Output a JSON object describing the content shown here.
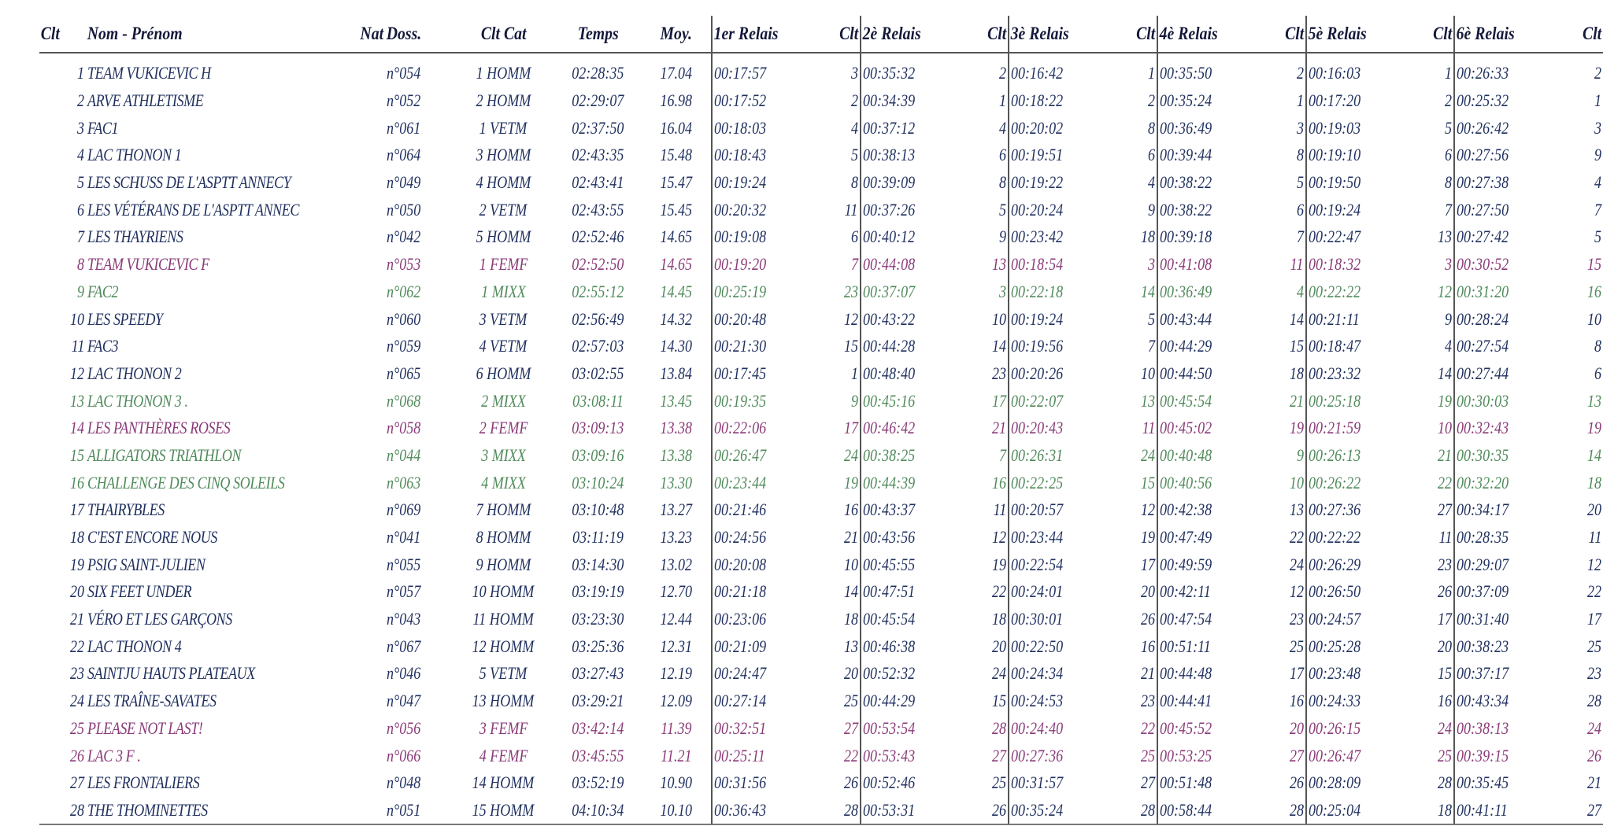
{
  "columns": {
    "clt": "Clt",
    "nom": "Nom - Prénom",
    "nat": "Nat",
    "doss": "Doss.",
    "clt_cat": "Clt Cat",
    "temps": "Temps",
    "moy": "Moy.",
    "relais1": "1er Relais",
    "relais2": "2è Relais",
    "relais3": "3è Relais",
    "relais4": "4è Relais",
    "relais5": "5è Relais",
    "relais6": "6è Relais"
  },
  "colors": {
    "HOMM": "#1f2f5e",
    "VETM": "#1f2f5e",
    "FEMF": "#8a3a78",
    "MIXX": "#4f8a5a",
    "header": "#14193a"
  },
  "rows": [
    {
      "clt": "1",
      "name": "TEAM VUKICEVIC H",
      "doss": "n°054",
      "cat": "1 HOMM",
      "type": "HOMM",
      "temps": "02:28:35",
      "moy": "17.04",
      "r1": "00:17:57",
      "c1": "3",
      "r2": "00:35:32",
      "c2": "2",
      "r3": "00:16:42",
      "c3": "1",
      "r4": "00:35:50",
      "c4": "2",
      "r5": "00:16:03",
      "c5": "1",
      "r6": "00:26:33",
      "c6": "2"
    },
    {
      "clt": "2",
      "name": "ARVE ATHLETISME",
      "doss": "n°052",
      "cat": "2 HOMM",
      "type": "HOMM",
      "temps": "02:29:07",
      "moy": "16.98",
      "r1": "00:17:52",
      "c1": "2",
      "r2": "00:34:39",
      "c2": "1",
      "r3": "00:18:22",
      "c3": "2",
      "r4": "00:35:24",
      "c4": "1",
      "r5": "00:17:20",
      "c5": "2",
      "r6": "00:25:32",
      "c6": "1"
    },
    {
      "clt": "3",
      "name": "FAC1",
      "doss": "n°061",
      "cat": "1 VETM",
      "type": "VETM",
      "temps": "02:37:50",
      "moy": "16.04",
      "r1": "00:18:03",
      "c1": "4",
      "r2": "00:37:12",
      "c2": "4",
      "r3": "00:20:02",
      "c3": "8",
      "r4": "00:36:49",
      "c4": "3",
      "r5": "00:19:03",
      "c5": "5",
      "r6": "00:26:42",
      "c6": "3"
    },
    {
      "clt": "4",
      "name": "LAC THONON 1",
      "doss": "n°064",
      "cat": "3 HOMM",
      "type": "HOMM",
      "temps": "02:43:35",
      "moy": "15.48",
      "r1": "00:18:43",
      "c1": "5",
      "r2": "00:38:13",
      "c2": "6",
      "r3": "00:19:51",
      "c3": "6",
      "r4": "00:39:44",
      "c4": "8",
      "r5": "00:19:10",
      "c5": "6",
      "r6": "00:27:56",
      "c6": "9"
    },
    {
      "clt": "5",
      "name": "LES SCHUSS DE L'ASPTT ANNECY",
      "doss": "n°049",
      "cat": "4 HOMM",
      "type": "HOMM",
      "temps": "02:43:41",
      "moy": "15.47",
      "r1": "00:19:24",
      "c1": "8",
      "r2": "00:39:09",
      "c2": "8",
      "r3": "00:19:22",
      "c3": "4",
      "r4": "00:38:22",
      "c4": "5",
      "r5": "00:19:50",
      "c5": "8",
      "r6": "00:27:38",
      "c6": "4"
    },
    {
      "clt": "6",
      "name": "LES VÉTÉRANS DE L'ASPTT ANNEC",
      "doss": "n°050",
      "cat": "2 VETM",
      "type": "VETM",
      "temps": "02:43:55",
      "moy": "15.45",
      "r1": "00:20:32",
      "c1": "11",
      "r2": "00:37:26",
      "c2": "5",
      "r3": "00:20:24",
      "c3": "9",
      "r4": "00:38:22",
      "c4": "6",
      "r5": "00:19:24",
      "c5": "7",
      "r6": "00:27:50",
      "c6": "7"
    },
    {
      "clt": "7",
      "name": "LES THAYRIENS",
      "doss": "n°042",
      "cat": "5 HOMM",
      "type": "HOMM",
      "temps": "02:52:46",
      "moy": "14.65",
      "r1": "00:19:08",
      "c1": "6",
      "r2": "00:40:12",
      "c2": "9",
      "r3": "00:23:42",
      "c3": "18",
      "r4": "00:39:18",
      "c4": "7",
      "r5": "00:22:47",
      "c5": "13",
      "r6": "00:27:42",
      "c6": "5"
    },
    {
      "clt": "8",
      "name": "TEAM VUKICEVIC F",
      "doss": "n°053",
      "cat": "1 FEMF",
      "type": "FEMF",
      "temps": "02:52:50",
      "moy": "14.65",
      "r1": "00:19:20",
      "c1": "7",
      "r2": "00:44:08",
      "c2": "13",
      "r3": "00:18:54",
      "c3": "3",
      "r4": "00:41:08",
      "c4": "11",
      "r5": "00:18:32",
      "c5": "3",
      "r6": "00:30:52",
      "c6": "15"
    },
    {
      "clt": "9",
      "name": "FAC2",
      "doss": "n°062",
      "cat": "1 MIXX",
      "type": "MIXX",
      "temps": "02:55:12",
      "moy": "14.45",
      "r1": "00:25:19",
      "c1": "23",
      "r2": "00:37:07",
      "c2": "3",
      "r3": "00:22:18",
      "c3": "14",
      "r4": "00:36:49",
      "c4": "4",
      "r5": "00:22:22",
      "c5": "12",
      "r6": "00:31:20",
      "c6": "16"
    },
    {
      "clt": "10",
      "name": "LES SPEEDY",
      "doss": "n°060",
      "cat": "3 VETM",
      "type": "VETM",
      "temps": "02:56:49",
      "moy": "14.32",
      "r1": "00:20:48",
      "c1": "12",
      "r2": "00:43:22",
      "c2": "10",
      "r3": "00:19:24",
      "c3": "5",
      "r4": "00:43:44",
      "c4": "14",
      "r5": "00:21:11",
      "c5": "9",
      "r6": "00:28:24",
      "c6": "10"
    },
    {
      "clt": "11",
      "name": "FAC3",
      "doss": "n°059",
      "cat": "4 VETM",
      "type": "VETM",
      "temps": "02:57:03",
      "moy": "14.30",
      "r1": "00:21:30",
      "c1": "15",
      "r2": "00:44:28",
      "c2": "14",
      "r3": "00:19:56",
      "c3": "7",
      "r4": "00:44:29",
      "c4": "15",
      "r5": "00:18:47",
      "c5": "4",
      "r6": "00:27:54",
      "c6": "8"
    },
    {
      "clt": "12",
      "name": "LAC THONON 2",
      "doss": "n°065",
      "cat": "6 HOMM",
      "type": "HOMM",
      "temps": "03:02:55",
      "moy": "13.84",
      "r1": "00:17:45",
      "c1": "1",
      "r2": "00:48:40",
      "c2": "23",
      "r3": "00:20:26",
      "c3": "10",
      "r4": "00:44:50",
      "c4": "18",
      "r5": "00:23:32",
      "c5": "14",
      "r6": "00:27:44",
      "c6": "6"
    },
    {
      "clt": "13",
      "name": "LAC THONON 3 .",
      "doss": "n°068",
      "cat": "2 MIXX",
      "type": "MIXX",
      "temps": "03:08:11",
      "moy": "13.45",
      "r1": "00:19:35",
      "c1": "9",
      "r2": "00:45:16",
      "c2": "17",
      "r3": "00:22:07",
      "c3": "13",
      "r4": "00:45:54",
      "c4": "21",
      "r5": "00:25:18",
      "c5": "19",
      "r6": "00:30:03",
      "c6": "13"
    },
    {
      "clt": "14",
      "name": "LES PANTHÈRES ROSES",
      "doss": "n°058",
      "cat": "2 FEMF",
      "type": "FEMF",
      "temps": "03:09:13",
      "moy": "13.38",
      "r1": "00:22:06",
      "c1": "17",
      "r2": "00:46:42",
      "c2": "21",
      "r3": "00:20:43",
      "c3": "11",
      "r4": "00:45:02",
      "c4": "19",
      "r5": "00:21:59",
      "c5": "10",
      "r6": "00:32:43",
      "c6": "19"
    },
    {
      "clt": "15",
      "name": "ALLIGATORS TRIATHLON",
      "doss": "n°044",
      "cat": "3 MIXX",
      "type": "MIXX",
      "temps": "03:09:16",
      "moy": "13.38",
      "r1": "00:26:47",
      "c1": "24",
      "r2": "00:38:25",
      "c2": "7",
      "r3": "00:26:31",
      "c3": "24",
      "r4": "00:40:48",
      "c4": "9",
      "r5": "00:26:13",
      "c5": "21",
      "r6": "00:30:35",
      "c6": "14"
    },
    {
      "clt": "16",
      "name": "CHALLENGE DES CINQ SOLEILS",
      "doss": "n°063",
      "cat": "4 MIXX",
      "type": "MIXX",
      "temps": "03:10:24",
      "moy": "13.30",
      "r1": "00:23:44",
      "c1": "19",
      "r2": "00:44:39",
      "c2": "16",
      "r3": "00:22:25",
      "c3": "15",
      "r4": "00:40:56",
      "c4": "10",
      "r5": "00:26:22",
      "c5": "22",
      "r6": "00:32:20",
      "c6": "18"
    },
    {
      "clt": "17",
      "name": "THAIRYBLES",
      "doss": "n°069",
      "cat": "7 HOMM",
      "type": "HOMM",
      "temps": "03:10:48",
      "moy": "13.27",
      "r1": "00:21:46",
      "c1": "16",
      "r2": "00:43:37",
      "c2": "11",
      "r3": "00:20:57",
      "c3": "12",
      "r4": "00:42:38",
      "c4": "13",
      "r5": "00:27:36",
      "c5": "27",
      "r6": "00:34:17",
      "c6": "20"
    },
    {
      "clt": "18",
      "name": "C'EST ENCORE NOUS",
      "doss": "n°041",
      "cat": "8 HOMM",
      "type": "HOMM",
      "temps": "03:11:19",
      "moy": "13.23",
      "r1": "00:24:56",
      "c1": "21",
      "r2": "00:43:56",
      "c2": "12",
      "r3": "00:23:44",
      "c3": "19",
      "r4": "00:47:49",
      "c4": "22",
      "r5": "00:22:22",
      "c5": "11",
      "r6": "00:28:35",
      "c6": "11"
    },
    {
      "clt": "19",
      "name": "PSIG SAINT-JULIEN",
      "doss": "n°055",
      "cat": "9 HOMM",
      "type": "HOMM",
      "temps": "03:14:30",
      "moy": "13.02",
      "r1": "00:20:08",
      "c1": "10",
      "r2": "00:45:55",
      "c2": "19",
      "r3": "00:22:54",
      "c3": "17",
      "r4": "00:49:59",
      "c4": "24",
      "r5": "00:26:29",
      "c5": "23",
      "r6": "00:29:07",
      "c6": "12"
    },
    {
      "clt": "20",
      "name": "SIX FEET UNDER",
      "doss": "n°057",
      "cat": "10 HOMM",
      "type": "HOMM",
      "temps": "03:19:19",
      "moy": "12.70",
      "r1": "00:21:18",
      "c1": "14",
      "r2": "00:47:51",
      "c2": "22",
      "r3": "00:24:01",
      "c3": "20",
      "r4": "00:42:11",
      "c4": "12",
      "r5": "00:26:50",
      "c5": "26",
      "r6": "00:37:09",
      "c6": "22"
    },
    {
      "clt": "21",
      "name": "VÉRO ET LES GARÇONS",
      "doss": "n°043",
      "cat": "11 HOMM",
      "type": "HOMM",
      "temps": "03:23:30",
      "moy": "12.44",
      "r1": "00:23:06",
      "c1": "18",
      "r2": "00:45:54",
      "c2": "18",
      "r3": "00:30:01",
      "c3": "26",
      "r4": "00:47:54",
      "c4": "23",
      "r5": "00:24:57",
      "c5": "17",
      "r6": "00:31:40",
      "c6": "17"
    },
    {
      "clt": "22",
      "name": "LAC THONON 4",
      "doss": "n°067",
      "cat": "12 HOMM",
      "type": "HOMM",
      "temps": "03:25:36",
      "moy": "12.31",
      "r1": "00:21:09",
      "c1": "13",
      "r2": "00:46:38",
      "c2": "20",
      "r3": "00:22:50",
      "c3": "16",
      "r4": "00:51:11",
      "c4": "25",
      "r5": "00:25:28",
      "c5": "20",
      "r6": "00:38:23",
      "c6": "25"
    },
    {
      "clt": "23",
      "name": "SAINTJU HAUTS PLATEAUX",
      "doss": "n°046",
      "cat": "5 VETM",
      "type": "VETM",
      "temps": "03:27:43",
      "moy": "12.19",
      "r1": "00:24:47",
      "c1": "20",
      "r2": "00:52:32",
      "c2": "24",
      "r3": "00:24:34",
      "c3": "21",
      "r4": "00:44:48",
      "c4": "17",
      "r5": "00:23:48",
      "c5": "15",
      "r6": "00:37:17",
      "c6": "23"
    },
    {
      "clt": "24",
      "name": "LES TRAÎNE-SAVATES",
      "doss": "n°047",
      "cat": "13 HOMM",
      "type": "HOMM",
      "temps": "03:29:21",
      "moy": "12.09",
      "r1": "00:27:14",
      "c1": "25",
      "r2": "00:44:29",
      "c2": "15",
      "r3": "00:24:53",
      "c3": "23",
      "r4": "00:44:41",
      "c4": "16",
      "r5": "00:24:33",
      "c5": "16",
      "r6": "00:43:34",
      "c6": "28"
    },
    {
      "clt": "25",
      "name": "PLEASE NOT LAST!",
      "doss": "n°056",
      "cat": "3 FEMF",
      "type": "FEMF",
      "temps": "03:42:14",
      "moy": "11.39",
      "r1": "00:32:51",
      "c1": "27",
      "r2": "00:53:54",
      "c2": "28",
      "r3": "00:24:40",
      "c3": "22",
      "r4": "00:45:52",
      "c4": "20",
      "r5": "00:26:15",
      "c5": "24",
      "r6": "00:38:13",
      "c6": "24"
    },
    {
      "clt": "26",
      "name": "LAC 3 F .",
      "doss": "n°066",
      "cat": "4 FEMF",
      "type": "FEMF",
      "temps": "03:45:55",
      "moy": "11.21",
      "r1": "00:25:11",
      "c1": "22",
      "r2": "00:53:43",
      "c2": "27",
      "r3": "00:27:36",
      "c3": "25",
      "r4": "00:53:25",
      "c4": "27",
      "r5": "00:26:47",
      "c5": "25",
      "r6": "00:39:15",
      "c6": "26"
    },
    {
      "clt": "27",
      "name": "LES FRONTALIERS",
      "doss": "n°048",
      "cat": "14 HOMM",
      "type": "HOMM",
      "temps": "03:52:19",
      "moy": "10.90",
      "r1": "00:31:56",
      "c1": "26",
      "r2": "00:52:46",
      "c2": "25",
      "r3": "00:31:57",
      "c3": "27",
      "r4": "00:51:48",
      "c4": "26",
      "r5": "00:28:09",
      "c5": "28",
      "r6": "00:35:45",
      "c6": "21"
    },
    {
      "clt": "28",
      "name": "THE THOMINETTES",
      "doss": "n°051",
      "cat": "15 HOMM",
      "type": "HOMM",
      "temps": "04:10:34",
      "moy": "10.10",
      "r1": "00:36:43",
      "c1": "28",
      "r2": "00:53:31",
      "c2": "26",
      "r3": "00:35:24",
      "c3": "28",
      "r4": "00:58:44",
      "c4": "28",
      "r5": "00:25:04",
      "c5": "18",
      "r6": "00:41:11",
      "c6": "27"
    }
  ]
}
